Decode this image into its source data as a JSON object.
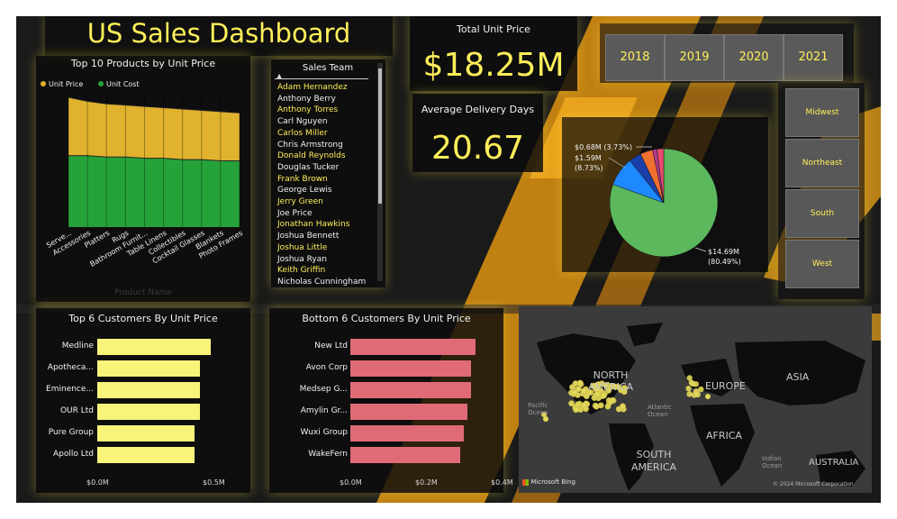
{
  "dashboard": {
    "title": "US Sales Dashboard",
    "colors": {
      "accent": "#ffef5a",
      "gold_bar": "#e0b22d",
      "green_bar": "#25a33a",
      "pink_bar": "#e06b77",
      "yellow_bar": "#f8f479"
    }
  },
  "kpis": {
    "total_unit_price": {
      "label": "Total Unit Price",
      "value": "$18.25M"
    },
    "avg_delivery": {
      "label": "Average Delivery Days",
      "value": "20.67"
    }
  },
  "years": [
    "2018",
    "2019",
    "2020",
    "2021"
  ],
  "regions": [
    "Midwest",
    "Northeast",
    "South",
    "West"
  ],
  "sales_team": {
    "header": "Sales Team",
    "members": [
      {
        "name": "Adam Hernandez",
        "highlight": true
      },
      {
        "name": "Anthony Berry",
        "highlight": false
      },
      {
        "name": "Anthony Torres",
        "highlight": true
      },
      {
        "name": "Carl Nguyen",
        "highlight": false
      },
      {
        "name": "Carlos Miller",
        "highlight": true
      },
      {
        "name": "Chris Armstrong",
        "highlight": false
      },
      {
        "name": "Donald Reynolds",
        "highlight": true
      },
      {
        "name": "Douglas Tucker",
        "highlight": false
      },
      {
        "name": "Frank Brown",
        "highlight": true
      },
      {
        "name": "George Lewis",
        "highlight": false
      },
      {
        "name": "Jerry Green",
        "highlight": true
      },
      {
        "name": "Joe Price",
        "highlight": false
      },
      {
        "name": "Jonathan Hawkins",
        "highlight": true
      },
      {
        "name": "Joshua Bennett",
        "highlight": false
      },
      {
        "name": "Joshua Little",
        "highlight": true
      },
      {
        "name": "Joshua Ryan",
        "highlight": false
      },
      {
        "name": "Keith Griffin",
        "highlight": true
      },
      {
        "name": "Nicholas Cunningham",
        "highlight": false
      }
    ]
  },
  "chart_data": [
    {
      "type": "area",
      "title": "Top 10 Products by Unit Price",
      "xlabel": "Product Name",
      "legend": "top-left",
      "categories": [
        "Serve...",
        "Accessories",
        "Platters",
        "Rugs",
        "Bathroom Furnit...",
        "Table Linens",
        "Collectibles",
        "Cocktail Glasses",
        "Blankets",
        "Photo Frames"
      ],
      "series": [
        {
          "name": "Unit Price",
          "color": "#e0b22d",
          "values": [
            1.0,
            0.97,
            0.95,
            0.94,
            0.93,
            0.92,
            0.91,
            0.9,
            0.89,
            0.88
          ]
        },
        {
          "name": "Unit Cost",
          "color": "#25a33a",
          "values": [
            0.55,
            0.55,
            0.54,
            0.54,
            0.53,
            0.53,
            0.52,
            0.52,
            0.51,
            0.51
          ]
        }
      ]
    },
    {
      "type": "pie",
      "labels": [
        "$0.68M (3.73%)",
        "$1.59M (8.73%)",
        "$14.69M (80.49%)"
      ],
      "slices": [
        {
          "value": 14.69,
          "pct": 80.49,
          "color": "#5cb85c"
        },
        {
          "value": 1.59,
          "pct": 8.73,
          "color": "#1e88ff"
        },
        {
          "value": 0.68,
          "pct": 3.73,
          "color": "#1a3fa8"
        },
        {
          "value": 0.68,
          "pct": 3.73,
          "color": "#f07030"
        },
        {
          "value": 0.24,
          "pct": 1.32,
          "color": "#b03a8a"
        },
        {
          "value": 0.37,
          "pct": 2.0,
          "color": "#e84a70"
        }
      ]
    },
    {
      "type": "bar",
      "orientation": "horizontal",
      "title": "Top 6 Customers By Unit Price",
      "categories": [
        "Medline",
        "Apotheca...",
        "Eminence...",
        "OUR Ltd",
        "Pure Group",
        "Apollo Ltd"
      ],
      "values": [
        0.49,
        0.44,
        0.44,
        0.44,
        0.42,
        0.42
      ],
      "xticks": [
        "$0.0M",
        "$0.5M"
      ],
      "xlim": [
        0,
        0.5
      ],
      "color": "#f8f479"
    },
    {
      "type": "bar",
      "orientation": "horizontal",
      "title": "Bottom 6 Customers By Unit Price",
      "categories": [
        "New Ltd",
        "Avon Corp",
        "Medsep G...",
        "Amylin Gr...",
        "Wuxi Group",
        "WakeFern"
      ],
      "values": [
        0.33,
        0.32,
        0.32,
        0.31,
        0.3,
        0.29
      ],
      "xticks": [
        "$0.0M",
        "$0.2M",
        "$0.4M"
      ],
      "xlim": [
        0,
        0.4
      ],
      "color": "#e06b77"
    }
  ],
  "map": {
    "labels": {
      "north_america": "NORTH AMERICA",
      "europe": "EUROPE",
      "asia": "ASIA",
      "africa": "AFRICA",
      "south_america": "SOUTH AMERICA",
      "australia": "AUSTRALIA",
      "pacific_ocean": "Pacific Ocean",
      "atlantic_ocean": "Atlantic Ocean",
      "indian_ocean": "Indian Ocean"
    },
    "provider": "Microsoft Bing",
    "copyright": "© 2024 Microsoft Corporation"
  }
}
